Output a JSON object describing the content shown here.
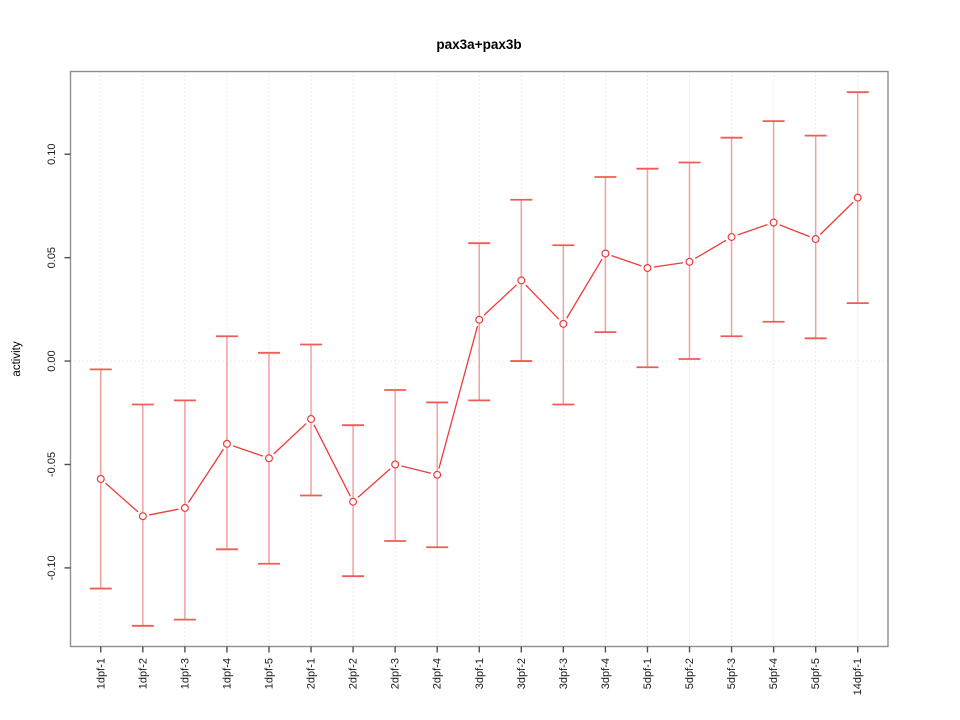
{
  "figure": {
    "background": "#ffffff"
  },
  "chart_data": {
    "type": "line",
    "title": "pax3a+pax3b",
    "ylabel": "activity",
    "xlabel": "",
    "categories": [
      "1dpf-1",
      "1dpf-2",
      "1dpf-3",
      "1dpf-4",
      "1dpf-5",
      "2dpf-1",
      "2dpf-2",
      "2dpf-3",
      "2dpf-4",
      "3dpf-1",
      "3dpf-2",
      "3dpf-3",
      "3dpf-4",
      "5dpf-1",
      "5dpf-2",
      "5dpf-3",
      "5dpf-4",
      "5dpf-5",
      "14dpf-1"
    ],
    "series": [
      {
        "name": "activity",
        "values": [
          -0.057,
          -0.075,
          -0.071,
          -0.04,
          -0.047,
          -0.028,
          -0.068,
          -0.05,
          -0.055,
          0.02,
          0.039,
          0.018,
          0.052,
          0.045,
          0.048,
          0.06,
          0.067,
          0.059,
          0.079
        ],
        "error_upper": [
          -0.004,
          -0.021,
          -0.019,
          0.012,
          0.004,
          0.008,
          -0.031,
          -0.014,
          -0.02,
          0.057,
          0.078,
          0.056,
          0.089,
          0.093,
          0.096,
          0.108,
          0.116,
          0.109,
          0.13
        ],
        "error_lower": [
          -0.11,
          -0.128,
          -0.125,
          -0.091,
          -0.098,
          -0.065,
          -0.104,
          -0.087,
          -0.09,
          -0.019,
          0.0,
          -0.021,
          0.014,
          -0.003,
          0.001,
          0.012,
          0.019,
          0.011,
          0.028
        ]
      }
    ],
    "yticks": [
      -0.1,
      -0.05,
      0.0,
      0.05,
      0.1
    ],
    "ytick_labels": [
      "-0.10",
      "-0.05",
      "0.00",
      "0.05",
      "0.10"
    ],
    "ylim": [
      -0.138,
      0.14
    ],
    "grid": "dotted vertical gridline at each category; dotted horizontal line at y=0",
    "legend": "none",
    "marker": "open-circle",
    "colors": {
      "point_line": "#ed3b3b",
      "error_bar_stem": "#f4a0a0",
      "error_bar_cap": "#f05c55",
      "grid": "#d6d6d6",
      "box": "#8f8f8f",
      "tick": "#4f4f4f",
      "text": "#1a1a1a"
    }
  }
}
